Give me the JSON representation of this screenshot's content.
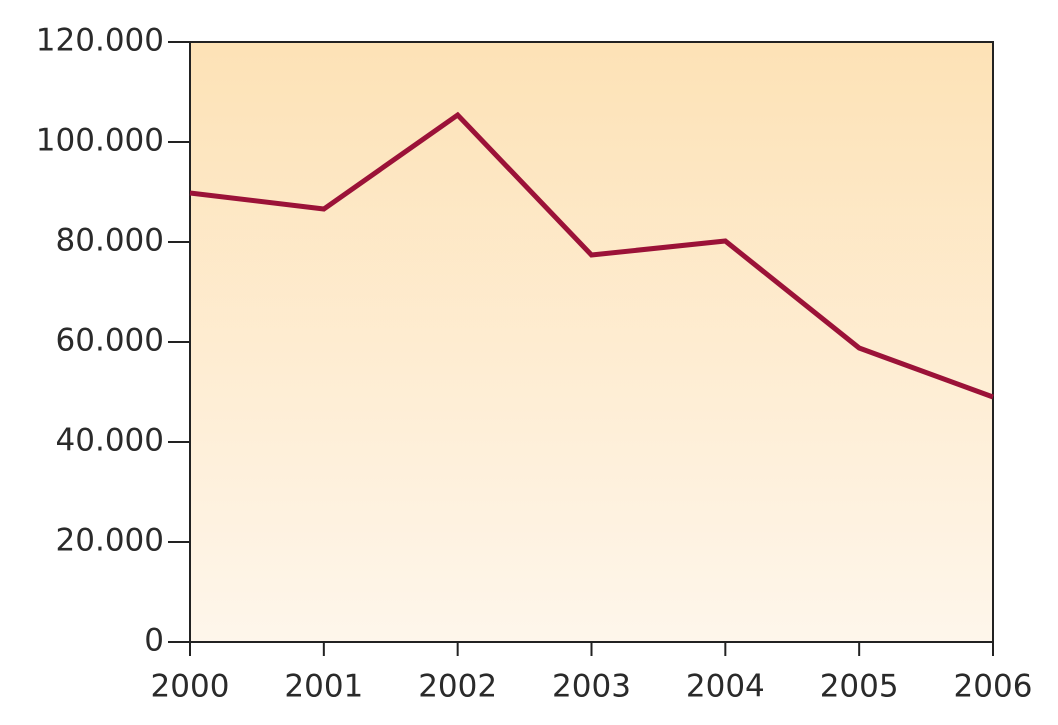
{
  "chart_data": {
    "type": "line",
    "x": [
      2000,
      2001,
      2002,
      2003,
      2004,
      2005,
      2006
    ],
    "series": [
      {
        "color": "#9b1238",
        "values": [
          89800,
          86600,
          105400,
          77400,
          80200,
          58800,
          49000
        ]
      }
    ],
    "xlim": [
      2000,
      2006
    ],
    "xticks": [
      2000,
      2001,
      2002,
      2003,
      2004,
      2005,
      2006
    ],
    "ylim": [
      0,
      120000
    ],
    "yticks": [
      0,
      {
        "value": 20000,
        "label": "20.000"
      },
      {
        "value": 40000,
        "label": "40.000"
      },
      {
        "value": 60000,
        "label": "60.000"
      },
      {
        "value": 80000,
        "label": "80.000"
      },
      {
        "value": 100000,
        "label": "100.000"
      },
      {
        "value": 120000,
        "label": "120.000"
      }
    ]
  }
}
